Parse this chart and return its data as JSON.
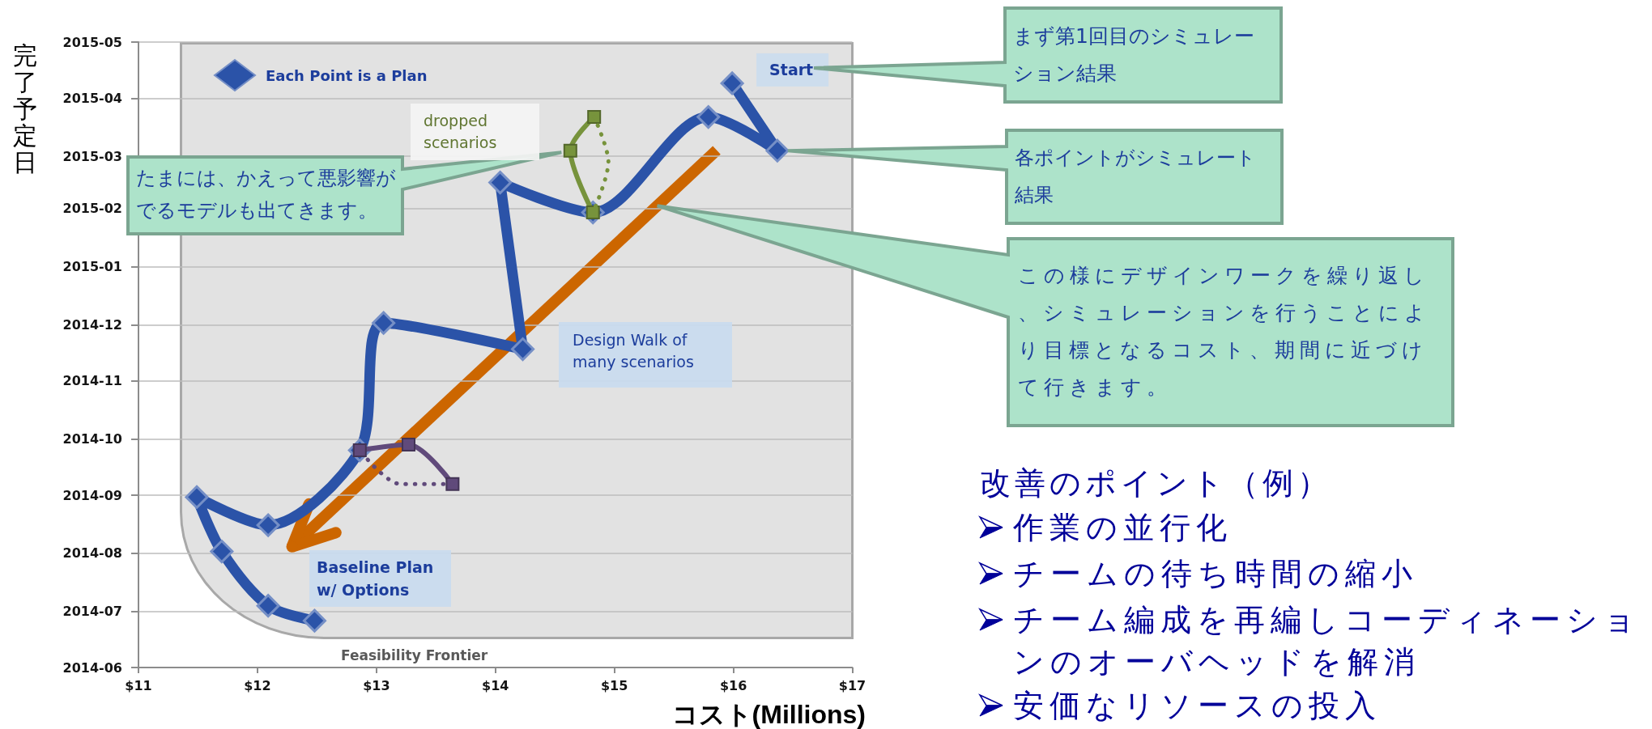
{
  "chart_data": {
    "type": "line",
    "orientation": "horizontal",
    "xlabel": "コスト(Millions)",
    "ylabel": "完了予定日",
    "xlim": [
      11,
      17
    ],
    "xticks": [
      {
        "value": 11,
        "label": "$11"
      },
      {
        "value": 12,
        "label": "$12"
      },
      {
        "value": 13,
        "label": "$13"
      },
      {
        "value": 14,
        "label": "$14"
      },
      {
        "value": 15,
        "label": "$15"
      },
      {
        "value": 16,
        "label": "$16"
      },
      {
        "value": 17,
        "label": "$17"
      }
    ],
    "ylim": [
      "2014-06",
      "2015-05"
    ],
    "yticks": [
      "2014-06",
      "2014-07",
      "2014-08",
      "2014-09",
      "2014-10",
      "2014-11",
      "2014-12",
      "2015-01",
      "2015-02",
      "2015-03",
      "2015-04",
      "2015-05"
    ],
    "grid": "y",
    "legend": "top left",
    "series": [
      {
        "name": "Each Point is a Plan",
        "color": "#2b53a8",
        "marker": "diamond",
        "x": [
          "2015-04-09",
          "2015-03-04",
          "2015-03-22",
          "2015-01-30",
          "2015-02-15",
          "2014-11-18",
          "2014-12-02",
          "2014-09-25",
          "2014-08-16",
          "2014-08-31",
          "2014-08-02",
          "2014-07-04",
          "2014-06-26"
        ],
        "values": [
          15.99,
          16.37,
          15.79,
          14.82,
          14.04,
          14.23,
          13.06,
          12.86,
          12.09,
          11.49,
          11.7,
          12.09,
          12.48
        ]
      },
      {
        "color": "#77933c",
        "marker": "square",
        "x": [
          "2015-01-30",
          "2015-03-04",
          "2015-03-22"
        ],
        "values": [
          14.82,
          14.63,
          14.83
        ]
      },
      {
        "color": "#77933c",
        "marker": "none",
        "line_style": "dotted",
        "x": [
          "2015-03-22",
          "2015-02-26",
          "2015-01-30"
        ],
        "values": [
          14.83,
          14.95,
          14.82
        ]
      },
      {
        "color": "#604a7b",
        "marker": "square",
        "x": [
          "2014-09-25",
          "2014-09-28",
          "2014-09-07"
        ],
        "values": [
          12.86,
          13.27,
          13.64
        ]
      },
      {
        "color": "#604a7b",
        "marker": "none",
        "line_style": "dotted",
        "x": [
          "2014-09-07",
          "2014-09-07",
          "2014-09-25"
        ],
        "values": [
          13.64,
          13.2,
          12.86
        ]
      }
    ],
    "annotations": [
      {
        "text": "Start",
        "x": 15.99,
        "y": "2015-04-09"
      },
      "まず第1回目のシミュレーション結果",
      "各ポイントがシミュレート結果",
      "この様にデザインワークを繰り返し、シミュレーションを行うことにより目標となるコスト、期間に近づけて行きます。",
      "たまには、かえって悪影響がでるモデルも出てきます。",
      "dropped scenarios",
      "Design Walk of many scenarios",
      "Baseline Plan w/ Options",
      "Feasibility Frontier",
      "改善のポイント（例）",
      "作業の並行化",
      "チームの待ち時間の縮小",
      "チーム編成を再編しコーディネーションのオーバヘッドを解消",
      "安価なリソースの投入"
    ]
  }
}
